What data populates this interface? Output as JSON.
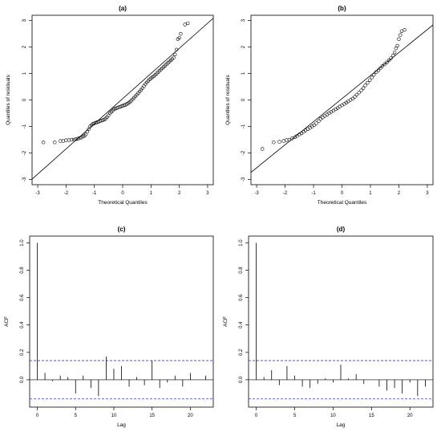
{
  "chart_data": [
    {
      "type": "scatter",
      "title": "(a)",
      "xlabel": "Theoretical Quantiles",
      "ylabel": "Quantiles of residuals",
      "xlim": [
        -3.2,
        3.2
      ],
      "ylim": [
        -3.2,
        3.2
      ],
      "x_ticks": [
        -3,
        -2,
        -1,
        0,
        1,
        2,
        3
      ],
      "y_ticks": [
        -3,
        -2,
        -1,
        0,
        1,
        2,
        3
      ],
      "reference_line": {
        "slope": 0.95,
        "intercept": 0.05
      },
      "points": [
        [
          -2.8,
          -1.6
        ],
        [
          -2.4,
          -1.6
        ],
        [
          -2.2,
          -1.55
        ],
        [
          -2.1,
          -1.55
        ],
        [
          -2.0,
          -1.52
        ],
        [
          -1.9,
          -1.52
        ],
        [
          -1.8,
          -1.5
        ],
        [
          -1.72,
          -1.5
        ],
        [
          -1.65,
          -1.48
        ],
        [
          -1.58,
          -1.46
        ],
        [
          -1.52,
          -1.44
        ],
        [
          -1.46,
          -1.42
        ],
        [
          -1.4,
          -1.38
        ],
        [
          -1.35,
          -1.35
        ],
        [
          -1.3,
          -1.3
        ],
        [
          -1.25,
          -1.2
        ],
        [
          -1.2,
          -1.1
        ],
        [
          -1.15,
          -1.0
        ],
        [
          -1.1,
          -0.95
        ],
        [
          -1.05,
          -0.9
        ],
        [
          -1.0,
          -0.88
        ],
        [
          -0.95,
          -0.86
        ],
        [
          -0.9,
          -0.84
        ],
        [
          -0.85,
          -0.82
        ],
        [
          -0.8,
          -0.8
        ],
        [
          -0.75,
          -0.78
        ],
        [
          -0.7,
          -0.76
        ],
        [
          -0.65,
          -0.74
        ],
        [
          -0.6,
          -0.7
        ],
        [
          -0.55,
          -0.65
        ],
        [
          -0.5,
          -0.58
        ],
        [
          -0.45,
          -0.5
        ],
        [
          -0.4,
          -0.45
        ],
        [
          -0.35,
          -0.4
        ],
        [
          -0.3,
          -0.35
        ],
        [
          -0.25,
          -0.32
        ],
        [
          -0.2,
          -0.3
        ],
        [
          -0.15,
          -0.28
        ],
        [
          -0.1,
          -0.26
        ],
        [
          -0.05,
          -0.24
        ],
        [
          0.0,
          -0.22
        ],
        [
          0.05,
          -0.2
        ],
        [
          0.1,
          -0.18
        ],
        [
          0.15,
          -0.15
        ],
        [
          0.2,
          -0.12
        ],
        [
          0.25,
          -0.08
        ],
        [
          0.3,
          -0.03
        ],
        [
          0.35,
          0.02
        ],
        [
          0.4,
          0.08
        ],
        [
          0.45,
          0.14
        ],
        [
          0.5,
          0.2
        ],
        [
          0.55,
          0.26
        ],
        [
          0.6,
          0.32
        ],
        [
          0.65,
          0.38
        ],
        [
          0.7,
          0.45
        ],
        [
          0.75,
          0.52
        ],
        [
          0.8,
          0.6
        ],
        [
          0.85,
          0.66
        ],
        [
          0.9,
          0.72
        ],
        [
          0.95,
          0.78
        ],
        [
          1.0,
          0.82
        ],
        [
          1.05,
          0.86
        ],
        [
          1.1,
          0.9
        ],
        [
          1.15,
          0.95
        ],
        [
          1.2,
          1.0
        ],
        [
          1.25,
          1.05
        ],
        [
          1.3,
          1.1
        ],
        [
          1.35,
          1.15
        ],
        [
          1.4,
          1.2
        ],
        [
          1.45,
          1.25
        ],
        [
          1.5,
          1.3
        ],
        [
          1.55,
          1.35
        ],
        [
          1.6,
          1.4
        ],
        [
          1.65,
          1.45
        ],
        [
          1.7,
          1.5
        ],
        [
          1.75,
          1.55
        ],
        [
          1.8,
          1.6
        ],
        [
          1.85,
          1.72
        ],
        [
          1.9,
          1.9
        ],
        [
          1.95,
          2.3
        ],
        [
          2.0,
          2.35
        ],
        [
          2.05,
          2.5
        ],
        [
          2.2,
          2.85
        ],
        [
          2.3,
          2.9
        ]
      ]
    },
    {
      "type": "scatter",
      "title": "(b)",
      "xlabel": "Theoretical Quantiles",
      "ylabel": "Quantiles of residuals",
      "xlim": [
        -3.2,
        3.2
      ],
      "ylim": [
        -3.2,
        3.2
      ],
      "x_ticks": [
        -3,
        -2,
        -1,
        0,
        1,
        2,
        3
      ],
      "y_ticks": [
        -3,
        -2,
        -1,
        0,
        1,
        2,
        3
      ],
      "reference_line": {
        "slope": 0.87,
        "intercept": 0.05
      },
      "points": [
        [
          -2.8,
          -1.85
        ],
        [
          -2.4,
          -1.6
        ],
        [
          -2.2,
          -1.58
        ],
        [
          -2.05,
          -1.55
        ],
        [
          -1.95,
          -1.52
        ],
        [
          -1.85,
          -1.5
        ],
        [
          -1.75,
          -1.45
        ],
        [
          -1.65,
          -1.4
        ],
        [
          -1.58,
          -1.36
        ],
        [
          -1.5,
          -1.3
        ],
        [
          -1.42,
          -1.26
        ],
        [
          -1.35,
          -1.2
        ],
        [
          -1.28,
          -1.15
        ],
        [
          -1.2,
          -1.1
        ],
        [
          -1.12,
          -1.05
        ],
        [
          -1.05,
          -1.0
        ],
        [
          -0.98,
          -0.95
        ],
        [
          -0.9,
          -0.88
        ],
        [
          -0.82,
          -0.8
        ],
        [
          -0.75,
          -0.72
        ],
        [
          -0.68,
          -0.66
        ],
        [
          -0.6,
          -0.6
        ],
        [
          -0.52,
          -0.55
        ],
        [
          -0.45,
          -0.5
        ],
        [
          -0.38,
          -0.45
        ],
        [
          -0.3,
          -0.4
        ],
        [
          -0.22,
          -0.35
        ],
        [
          -0.15,
          -0.3
        ],
        [
          -0.08,
          -0.25
        ],
        [
          0.0,
          -0.2
        ],
        [
          0.08,
          -0.15
        ],
        [
          0.15,
          -0.1
        ],
        [
          0.22,
          -0.05
        ],
        [
          0.3,
          0.0
        ],
        [
          0.38,
          0.05
        ],
        [
          0.45,
          0.12
        ],
        [
          0.52,
          0.2
        ],
        [
          0.6,
          0.28
        ],
        [
          0.68,
          0.36
        ],
        [
          0.75,
          0.45
        ],
        [
          0.82,
          0.55
        ],
        [
          0.9,
          0.65
        ],
        [
          0.98,
          0.75
        ],
        [
          1.05,
          0.85
        ],
        [
          1.12,
          0.95
        ],
        [
          1.2,
          1.05
        ],
        [
          1.28,
          1.12
        ],
        [
          1.35,
          1.2
        ],
        [
          1.42,
          1.28
        ],
        [
          1.5,
          1.35
        ],
        [
          1.58,
          1.42
        ],
        [
          1.65,
          1.5
        ],
        [
          1.72,
          1.58
        ],
        [
          1.8,
          1.68
        ],
        [
          1.85,
          1.8
        ],
        [
          1.9,
          1.95
        ],
        [
          1.95,
          2.05
        ],
        [
          2.0,
          2.3
        ],
        [
          2.05,
          2.45
        ],
        [
          2.1,
          2.6
        ],
        [
          2.2,
          2.65
        ]
      ]
    },
    {
      "type": "bar",
      "title": "(c)",
      "xlabel": "Lag",
      "ylabel": "ACF",
      "xlim": [
        -1,
        23
      ],
      "ylim": [
        -0.2,
        1.05
      ],
      "x_ticks": [
        0,
        5,
        10,
        15,
        20
      ],
      "y_ticks": [
        0.0,
        0.2,
        0.4,
        0.6,
        0.8,
        1.0
      ],
      "y_tick_labels": [
        "0.0",
        "0.2",
        "0.4",
        "0.6",
        "0.8",
        "1.0"
      ],
      "confidence_bounds": [
        0.14,
        -0.14
      ],
      "lags": [
        0,
        1,
        2,
        3,
        4,
        5,
        6,
        7,
        8,
        9,
        10,
        11,
        12,
        13,
        14,
        15,
        16,
        17,
        18,
        19,
        20,
        21,
        22
      ],
      "values": [
        1.0,
        0.05,
        -0.01,
        0.03,
        0.02,
        -0.1,
        0.03,
        -0.06,
        -0.12,
        0.17,
        0.08,
        0.1,
        -0.05,
        0.02,
        -0.04,
        0.14,
        -0.06,
        -0.02,
        0.03,
        -0.05,
        0.05,
        0.0,
        0.03
      ]
    },
    {
      "type": "bar",
      "title": "(d)",
      "xlabel": "Lag",
      "ylabel": "ACF",
      "xlim": [
        -1,
        23
      ],
      "ylim": [
        -0.2,
        1.05
      ],
      "x_ticks": [
        0,
        5,
        10,
        15,
        20
      ],
      "y_ticks": [
        0.0,
        0.2,
        0.4,
        0.6,
        0.8,
        1.0
      ],
      "y_tick_labels": [
        "0.0",
        "0.2",
        "0.4",
        "0.6",
        "0.8",
        "1.0"
      ],
      "confidence_bounds": [
        0.14,
        -0.14
      ],
      "lags": [
        0,
        1,
        2,
        3,
        4,
        5,
        6,
        7,
        8,
        9,
        10,
        11,
        12,
        13,
        14,
        15,
        16,
        17,
        18,
        19,
        20,
        21,
        22
      ],
      "values": [
        1.0,
        0.02,
        0.07,
        -0.04,
        0.1,
        0.03,
        -0.05,
        -0.06,
        -0.03,
        0.01,
        -0.02,
        0.11,
        0.01,
        0.04,
        -0.03,
        0.0,
        -0.05,
        -0.08,
        -0.06,
        -0.1,
        -0.02,
        -0.12,
        -0.05
      ]
    }
  ]
}
